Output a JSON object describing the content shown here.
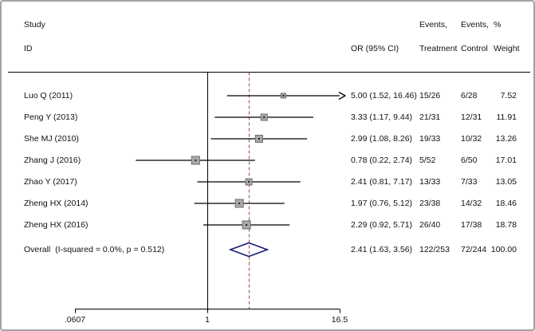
{
  "chart_data": {
    "type": "forest",
    "title": "",
    "x_axis": {
      "scale": "log",
      "tick_labels": [
        ".0607",
        "1",
        "16.5"
      ],
      "tick_values": [
        0.0607,
        1,
        16.5
      ]
    },
    "headers": {
      "study_line1": "Study",
      "study_line2": "ID",
      "or": "OR (95% CI)",
      "treatment_line1": "Events,",
      "treatment_line2": "Treatment",
      "control_line1": "Events,",
      "control_line2": "Control",
      "weight_line1": "%",
      "weight_line2": "Weight"
    },
    "reference_value": 1,
    "studies": [
      {
        "id": "Luo Q (2011)",
        "or": 5.0,
        "ci_low": 1.52,
        "ci_high": 16.46,
        "or_text": "5.00 (1.52, 16.46)",
        "events_treatment": "15/26",
        "events_control": "6/28",
        "weight": 7.52,
        "weight_text": "7.52",
        "arrow_high": true
      },
      {
        "id": "Peng Y (2013)",
        "or": 3.33,
        "ci_low": 1.17,
        "ci_high": 9.44,
        "or_text": "3.33 (1.17, 9.44)",
        "events_treatment": "21/31",
        "events_control": "12/31",
        "weight": 11.91,
        "weight_text": "11.91",
        "arrow_high": false
      },
      {
        "id": "She MJ (2010)",
        "or": 2.99,
        "ci_low": 1.08,
        "ci_high": 8.26,
        "or_text": "2.99 (1.08, 8.26)",
        "events_treatment": "19/33",
        "events_control": "10/32",
        "weight": 13.26,
        "weight_text": "13.26",
        "arrow_high": false
      },
      {
        "id": "Zhang J (2016)",
        "or": 0.78,
        "ci_low": 0.22,
        "ci_high": 2.74,
        "or_text": "0.78 (0.22, 2.74)",
        "events_treatment": "5/52",
        "events_control": "6/50",
        "weight": 17.01,
        "weight_text": "17.01",
        "arrow_high": false
      },
      {
        "id": "Zhao Y (2017)",
        "or": 2.41,
        "ci_low": 0.81,
        "ci_high": 7.17,
        "or_text": "2.41 (0.81, 7.17)",
        "events_treatment": "13/33",
        "events_control": "7/33",
        "weight": 13.05,
        "weight_text": "13.05",
        "arrow_high": false
      },
      {
        "id": "Zheng HX (2014)",
        "or": 1.97,
        "ci_low": 0.76,
        "ci_high": 5.12,
        "or_text": "1.97 (0.76, 5.12)",
        "events_treatment": "23/38",
        "events_control": "14/32",
        "weight": 18.46,
        "weight_text": "18.46",
        "arrow_high": false
      },
      {
        "id": "Zheng HX (2016)",
        "or": 2.29,
        "ci_low": 0.92,
        "ci_high": 5.71,
        "or_text": "2.29 (0.92, 5.71)",
        "events_treatment": "26/40",
        "events_control": "17/38",
        "weight": 18.78,
        "weight_text": "18.78",
        "arrow_high": false
      }
    ],
    "overall": {
      "label": "Overall  (I-squared = 0.0%, p = 0.512)",
      "or": 2.41,
      "ci_low": 1.63,
      "ci_high": 3.56,
      "or_text": "2.41 (1.63, 3.56)",
      "events_treatment": "122/253",
      "events_control": "72/244",
      "weight_text": "100.00"
    },
    "colors": {
      "ci_line": "#000000",
      "square_fill": "#a8a8a8",
      "square_border": "#6e6e6e",
      "marker_dot": "#1a1a1a",
      "diamond_outline": "#1b1b77",
      "dashed_line": "#9e4b4b",
      "frame_border": "#a3a3a3"
    }
  }
}
